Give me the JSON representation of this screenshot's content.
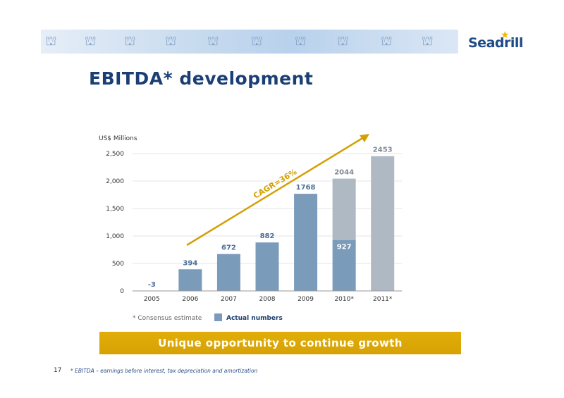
{
  "brand": {
    "name": "Seadrill",
    "accent": "#f2b705",
    "navy": "#1b3f74"
  },
  "slide": {
    "title": "EBITDA* development",
    "page_number": "17",
    "footnote": "* EBITDA – earnings before interest, tax depreciation and amortization",
    "callout": "Unique opportunity to continue growth"
  },
  "chart_data": {
    "type": "bar",
    "ylabel": "US$ Millions",
    "ylim": [
      0,
      2500
    ],
    "yticks": [
      0,
      500,
      1000,
      1500,
      2000,
      2500
    ],
    "ytick_labels": [
      "0",
      "500",
      "1,000",
      "1,500",
      "2,000",
      "2,500"
    ],
    "categories": [
      "2005",
      "2006",
      "2007",
      "2008",
      "2009",
      "2010*",
      "2011*"
    ],
    "totals": [
      -3,
      394,
      672,
      882,
      1768,
      2044,
      2453
    ],
    "total_labels": [
      "-3",
      "394",
      "672",
      "882",
      "1768",
      "2044",
      "2453"
    ],
    "actual": [
      -3,
      394,
      672,
      882,
      1768,
      927,
      0
    ],
    "inner_labels": {
      "5": "927"
    },
    "colors": {
      "actual": "#7b9bbb",
      "estimate": "#aeb9c4",
      "label_actual": "#4d6f97",
      "label_estimate": "#7d8894",
      "arrow": "#d4a006"
    },
    "annotation": "CAGR=36%",
    "legend": {
      "note": "* Consensus estimate",
      "actual_label": "Actual numbers"
    }
  }
}
